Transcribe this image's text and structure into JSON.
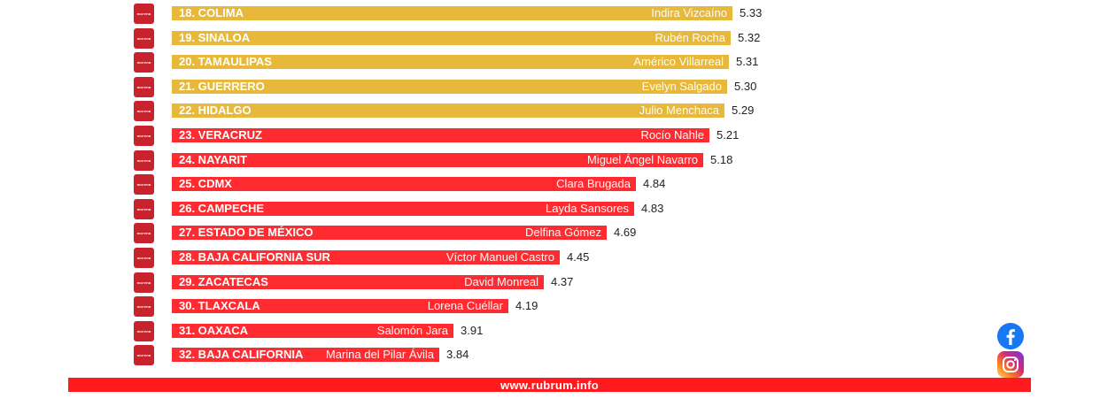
{
  "chart_data": {
    "type": "bar",
    "orientation": "horizontal",
    "categories": [
      "18. COLIMA",
      "19. SINALOA",
      "20. TAMAULIPAS",
      "21. GUERRERO",
      "22. HIDALGO",
      "23. VERACRUZ",
      "24. NAYARIT",
      "25. CDMX",
      "26. CAMPECHE",
      "27. ESTADO DE MÉXICO",
      "28. BAJA CALIFORNIA SUR",
      "29. ZACATECAS",
      "30. TLAXCALA",
      "31. OAXACA",
      "32. BAJA CALIFORNIA"
    ],
    "governors": [
      "Indira Vizcaíno",
      "Rubén Rocha",
      "Américo Villarreal",
      "Evelyn Salgado",
      "Julio Menchaca",
      "Rocío Nahle",
      "Miguel Ángel Navarro",
      "Clara Brugada",
      "Layda Sansores",
      "Delfina Gómez",
      "Víctor Manuel Castro",
      "David Monreal",
      "Lorena Cuéllar",
      "Salomón Jara",
      "Marina del Pilar Ávila"
    ],
    "values": [
      5.33,
      5.32,
      5.31,
      5.3,
      5.29,
      5.21,
      5.18,
      4.84,
      4.83,
      4.69,
      4.45,
      4.37,
      4.19,
      3.91,
      3.84
    ],
    "value_labels": [
      "5.33",
      "5.32",
      "5.31",
      "5.30",
      "5.29",
      "5.21",
      "5.18",
      "4.84",
      "4.83",
      "4.69",
      "4.45",
      "4.37",
      "4.19",
      "3.91",
      "3.84"
    ],
    "bar_colors": [
      "#e8b83a",
      "#e8b83a",
      "#e8b83a",
      "#e8b83a",
      "#e8b83a",
      "#ff2b30",
      "#ff2b30",
      "#ff2b30",
      "#ff2b30",
      "#ff2b30",
      "#ff2b30",
      "#ff2b30",
      "#ff2b30",
      "#ff2b30",
      "#ff2b30"
    ],
    "party_logo_text": "morena"
  },
  "footer": {
    "url": "www.rubrum.info"
  },
  "colors": {
    "footer_bar": "#ff1a1f",
    "facebook": "#1877f2"
  },
  "social_icons": [
    "facebook-icon",
    "instagram-icon"
  ]
}
